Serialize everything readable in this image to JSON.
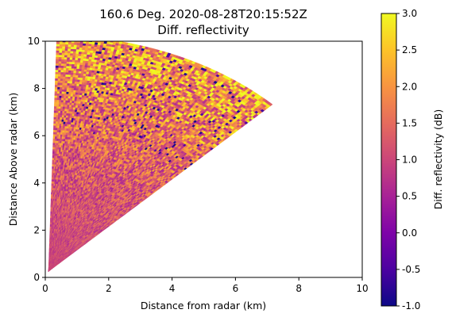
{
  "chart_data": {
    "type": "heatmap",
    "title_line1": "160.6 Deg. 2020-08-28T20:15:52Z",
    "title_line2": "Diff. reflectivity",
    "xlabel": "Distance from radar (km)",
    "ylabel": "Distance Above radar  (km)",
    "xlim": [
      0,
      10
    ],
    "ylim": [
      0,
      10
    ],
    "xticks": [
      0,
      2,
      4,
      6,
      8,
      10
    ],
    "yticks": [
      0,
      2,
      4,
      6,
      8,
      10
    ],
    "colorbar": {
      "label": "Diff. reflectivity (dB)",
      "range": [
        -1.0,
        3.0
      ],
      "ticks": [
        "-1.0",
        "-0.5",
        "0.0",
        "0.5",
        "1.0",
        "1.5",
        "2.0",
        "2.5",
        "3.0"
      ],
      "colormap": "plasma"
    },
    "sector": {
      "elevation_min_deg": 45,
      "elevation_max_deg": 88.5,
      "range_max_km": 10,
      "origin_km": [
        0.1,
        0.25
      ],
      "value_trend": [
        {
          "range_km": 0.5,
          "zdr_db": 1.0
        },
        {
          "range_km": 4.0,
          "zdr_db": 1.2
        },
        {
          "range_km": 7.0,
          "zdr_db": 1.6
        },
        {
          "range_km": 9.0,
          "zdr_db": 2.0
        },
        {
          "range_km": 10.0,
          "zdr_db": 2.2
        }
      ]
    }
  }
}
